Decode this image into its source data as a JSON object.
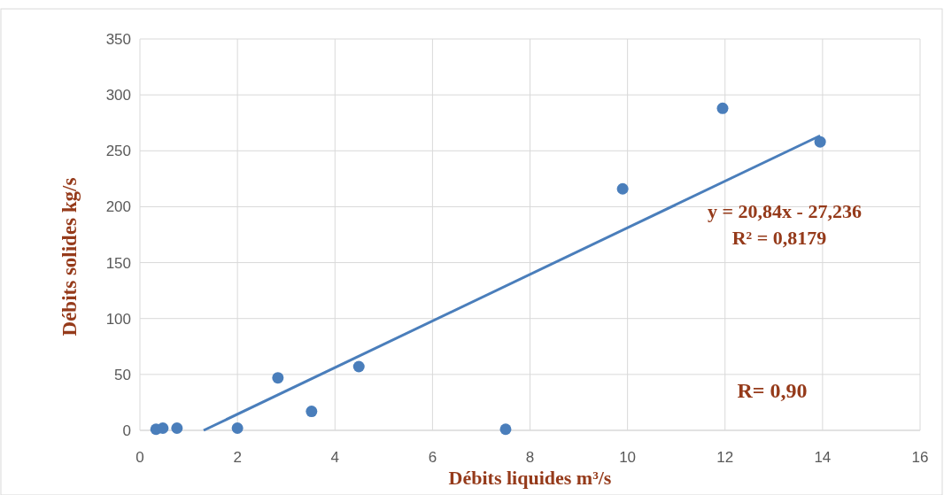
{
  "chart_data": {
    "type": "scatter",
    "xlabel": "Débits liquides m³/s",
    "ylabel": "Débits solides kg/s",
    "xlim": [
      0,
      16
    ],
    "xticks": [
      0,
      2,
      4,
      6,
      8,
      10,
      12,
      14,
      16
    ],
    "ylim": [
      0,
      350
    ],
    "yticks": [
      0,
      50,
      100,
      150,
      200,
      250,
      300,
      350
    ],
    "grid": true,
    "series": [
      {
        "marker": "circle",
        "color": "#4a7ebb",
        "x": [
          0.33,
          0.47,
          0.76,
          2.0,
          2.83,
          3.52,
          4.49,
          7.5,
          9.9,
          11.95,
          13.95
        ],
        "values": [
          1,
          2,
          2,
          2,
          47,
          17,
          57,
          1,
          216,
          288,
          258
        ]
      },
      {
        "type": "line",
        "color": "#4a7ebb",
        "line_style": "solid",
        "x": [
          1.307,
          13.95
        ],
        "values": [
          0,
          263.5
        ]
      }
    ],
    "annotations": [
      "y = 20,84x - 27,236",
      "R² = 0,8179",
      "R= 0,90"
    ]
  }
}
